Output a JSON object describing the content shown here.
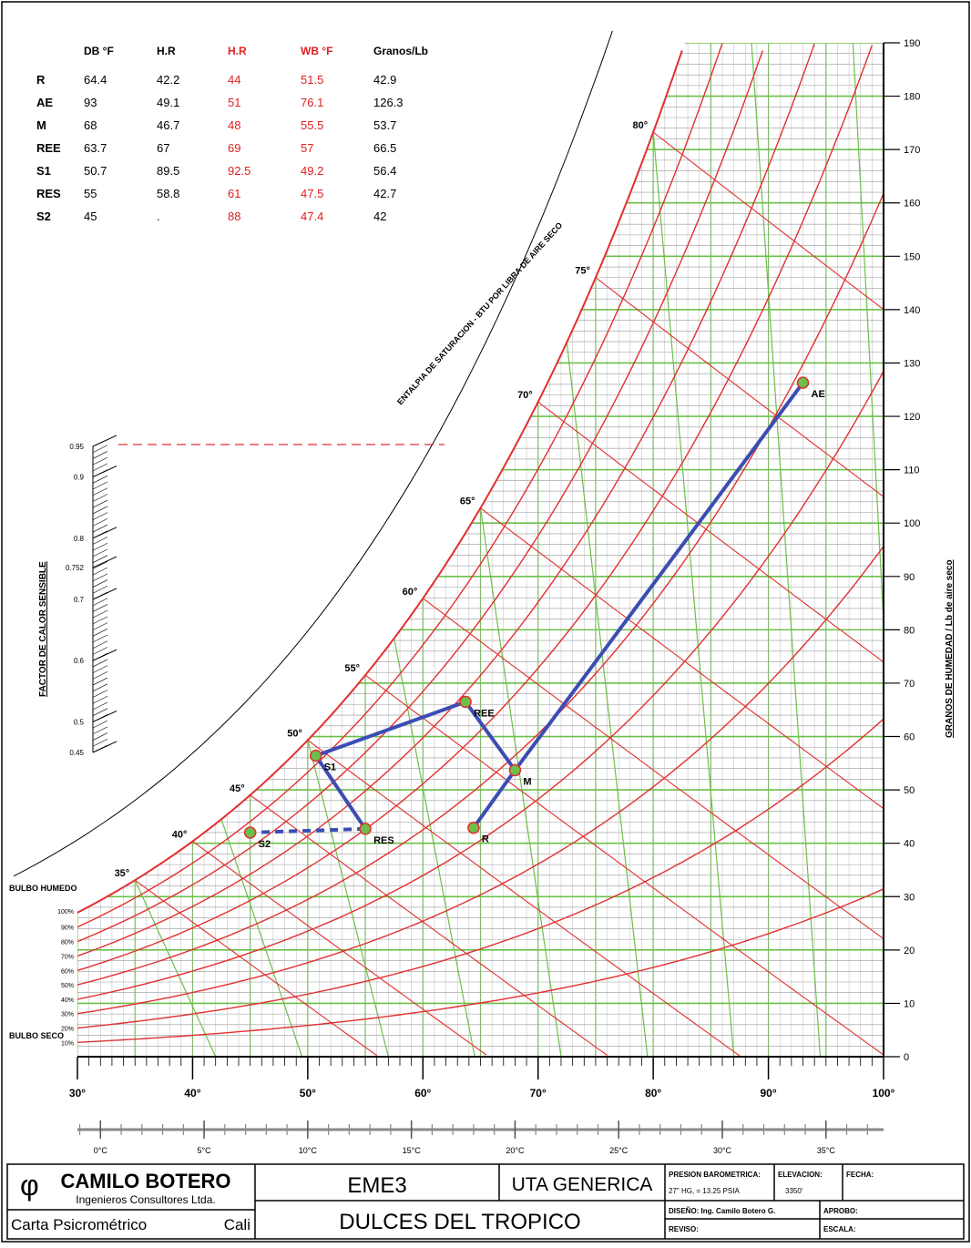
{
  "table": {
    "headers": [
      "DB °F",
      "H.R",
      "H.R",
      "WB °F",
      "Granos/Lb"
    ],
    "rows": [
      [
        "R",
        64.4,
        42.2,
        44,
        51.5,
        42.9
      ],
      [
        "AE",
        93,
        49.1,
        51,
        76.1,
        126.3
      ],
      [
        "M",
        68,
        46.7,
        48,
        55.5,
        53.7
      ],
      [
        "REE",
        63.7,
        67,
        69,
        57,
        66.5
      ],
      [
        "S1",
        50.7,
        89.5,
        92.5,
        49.2,
        56.4
      ],
      [
        "RES",
        55,
        58.8,
        61,
        47.5,
        42.7
      ],
      [
        "S2",
        45,
        ".",
        88,
        47.4,
        42
      ]
    ]
  },
  "chart_data": {
    "type": "psychrometric",
    "xlim": [
      30,
      100
    ],
    "ylim": [
      0,
      190
    ],
    "xticks": [
      {
        "value": 30,
        "label": "30°"
      },
      {
        "value": 40,
        "label": "40°"
      },
      {
        "value": 50,
        "label": "50°"
      },
      {
        "value": 60,
        "label": "60°"
      },
      {
        "value": 70,
        "label": "70°"
      },
      {
        "value": 80,
        "label": "80°"
      },
      {
        "value": 90,
        "label": "90°"
      },
      {
        "value": 100,
        "label": "100°"
      }
    ],
    "yticks": [
      0,
      10,
      20,
      30,
      40,
      50,
      60,
      70,
      80,
      90,
      100,
      110,
      120,
      130,
      140,
      150,
      160,
      170,
      180,
      190
    ],
    "x2ticks": [
      {
        "value": 0,
        "label": "0°C"
      },
      {
        "value": 5,
        "label": "5°C"
      },
      {
        "value": 10,
        "label": "10°C"
      },
      {
        "value": 15,
        "label": "15°C"
      },
      {
        "value": 20,
        "label": "20°C"
      },
      {
        "value": 25,
        "label": "25°C"
      },
      {
        "value": 30,
        "label": "30°C"
      },
      {
        "value": 35,
        "label": "35°C"
      }
    ],
    "wet_bulb_ticks": [
      {
        "value": 35,
        "label": "35°"
      },
      {
        "value": 40,
        "label": "40°"
      },
      {
        "value": 45,
        "label": "45°"
      },
      {
        "value": 50,
        "label": "50°"
      },
      {
        "value": 55,
        "label": "55°"
      },
      {
        "value": 60,
        "label": "60°"
      },
      {
        "value": 65,
        "label": "65°"
      },
      {
        "value": 70,
        "label": "70°"
      },
      {
        "value": 75,
        "label": "75°"
      },
      {
        "value": 80,
        "label": "80°"
      }
    ],
    "rh_ticks": [
      {
        "value": 100,
        "label": "100%"
      },
      {
        "value": 90,
        "label": "90%"
      },
      {
        "value": 80,
        "label": "80%"
      },
      {
        "value": 70,
        "label": "70%"
      },
      {
        "value": 60,
        "label": "60%"
      },
      {
        "value": 50,
        "label": "50%"
      },
      {
        "value": 40,
        "label": "40%"
      },
      {
        "value": 30,
        "label": "30%"
      },
      {
        "value": 20,
        "label": "20%"
      },
      {
        "value": 10,
        "label": "10%"
      }
    ],
    "shf_ticks": [
      0.95,
      0.9,
      0.8,
      0.752,
      0.7,
      0.6,
      0.5,
      0.45
    ],
    "shf_label": "FACTOR DE CALOR SENSIBLE",
    "y_label": "GRANOS DE HUMEDAD / Lb de aire seco",
    "enthalpy_label": "ENTALPIA DE SATURACION - BTU POR LIBRA DE AIRE SECO",
    "wet_bulb_axis": "BULBO HUMEDO",
    "dry_bulb_axis": "BULBO SECO",
    "process_color": "#3b4db3",
    "point_color": "#6cbf4a"
  },
  "title_block": {
    "company": "CAMILO BOTERO",
    "subtitle": "Ingenieros Consultores Ltda.",
    "chart_name": "Carta Psicrométrico",
    "city": "Cali",
    "project": "EME3",
    "unit": "UTA GENERICA",
    "client": "DULCES DEL TROPICO",
    "pressure_label": "PRESION BAROMETRICA:",
    "pressure": "27\" HG, = 13.25 PSIA",
    "elevation_label": "ELEVACION:",
    "elevation": "3350'",
    "date_label": "FECHA:",
    "design": "DISEÑO: Ing. Camilo Botero G.",
    "approved": "APROBO:",
    "reviewed": "REVISO:",
    "scale": "ESCALA:"
  }
}
